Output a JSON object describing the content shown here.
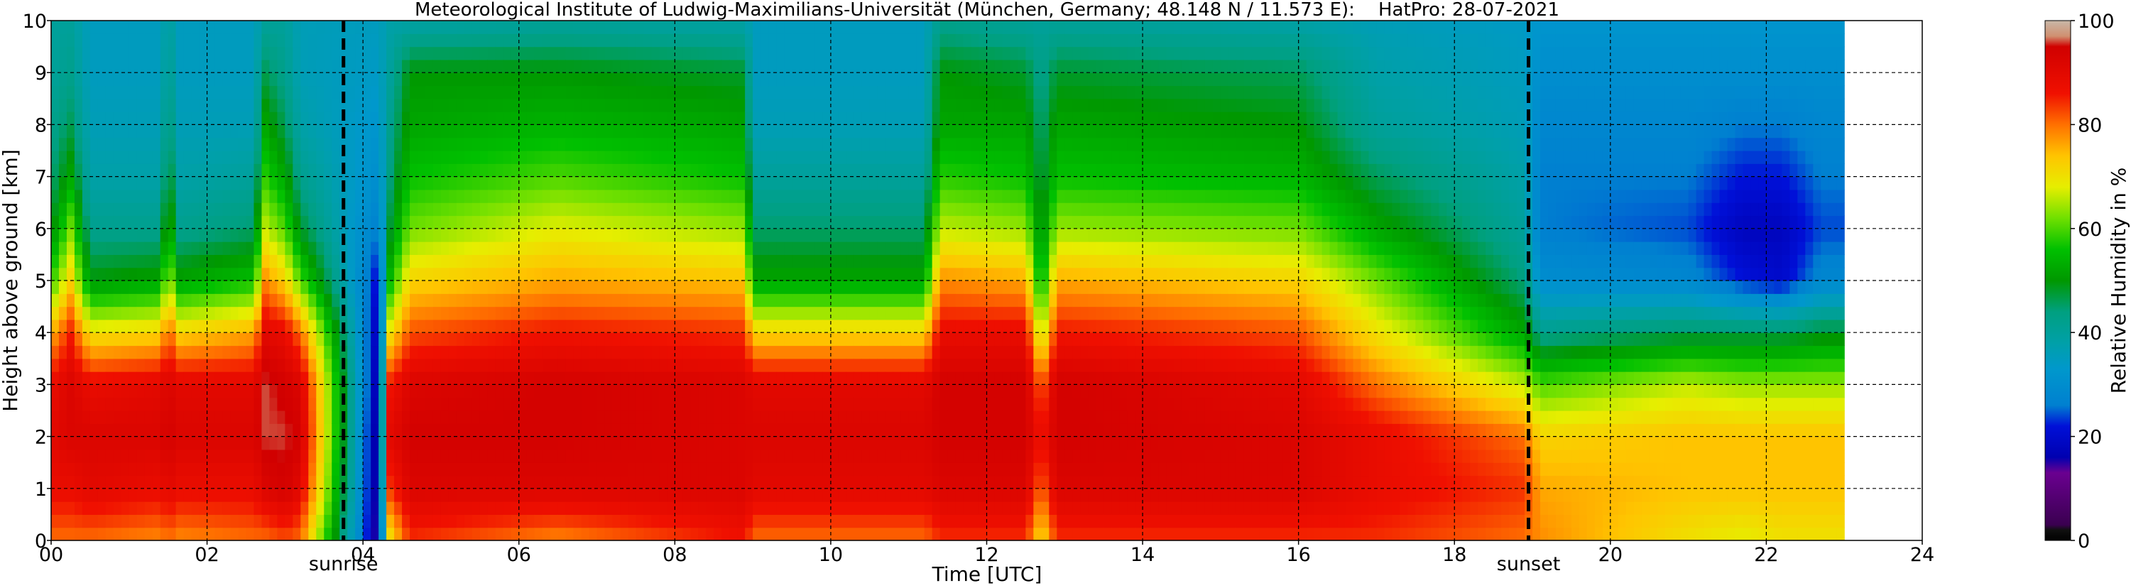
{
  "chart_data": {
    "type": "heatmap",
    "title": "Meteorological Institute of Ludwig-Maximilians-Universität (München, Germany; 48.148 N / 11.573 E):    HatPro: 28-07-2021",
    "xlabel": "Time [UTC]",
    "ylabel": "Height above ground [km]",
    "xlim": [
      0,
      24
    ],
    "ylim": [
      0,
      10
    ],
    "x_ticks": [
      "00",
      "02",
      "04",
      "06",
      "08",
      "10",
      "12",
      "14",
      "16",
      "18",
      "20",
      "22",
      "24"
    ],
    "y_ticks": [
      "0",
      "1",
      "2",
      "3",
      "4",
      "5",
      "6",
      "7",
      "8",
      "9",
      "10"
    ],
    "grid": true,
    "colorbar": {
      "label": "Relative Humidity in %",
      "range": [
        0,
        100
      ],
      "ticks": [
        "0",
        "20",
        "40",
        "60",
        "80",
        "100"
      ]
    },
    "markers": [
      {
        "label": "sunrise",
        "time": 3.75
      },
      {
        "label": "sunset",
        "time": 18.95
      }
    ],
    "data_end_time": 23.0,
    "profiles": [
      {
        "time": 0.0,
        "rh": [
          80,
          88,
          90,
          88,
          75,
          58,
          48,
          44,
          42,
          40,
          40
        ]
      },
      {
        "time": 0.25,
        "rh": [
          80,
          88,
          92,
          92,
          85,
          72,
          62,
          52,
          46,
          42,
          40
        ]
      },
      {
        "time": 0.5,
        "rh": [
          80,
          90,
          92,
          88,
          70,
          50,
          42,
          38,
          36,
          35,
          35
        ]
      },
      {
        "time": 1.4,
        "rh": [
          78,
          88,
          92,
          90,
          72,
          52,
          42,
          38,
          36,
          35,
          35
        ]
      },
      {
        "time": 1.5,
        "rh": [
          80,
          90,
          94,
          92,
          82,
          66,
          56,
          50,
          45,
          42,
          40
        ]
      },
      {
        "time": 1.65,
        "rh": [
          78,
          88,
          92,
          90,
          72,
          52,
          42,
          38,
          36,
          35,
          35
        ]
      },
      {
        "time": 2.6,
        "rh": [
          80,
          88,
          92,
          90,
          76,
          56,
          45,
          40,
          36,
          35,
          35
        ]
      },
      {
        "time": 2.75,
        "rh": [
          80,
          92,
          96,
          96,
          90,
          78,
          66,
          58,
          52,
          46,
          40
        ]
      },
      {
        "time": 3.0,
        "rh": [
          82,
          94,
          96,
          94,
          88,
          72,
          60,
          52,
          46,
          42,
          40
        ]
      },
      {
        "time": 3.2,
        "rh": [
          80,
          90,
          94,
          92,
          80,
          60,
          48,
          42,
          38,
          36,
          36
        ]
      },
      {
        "time": 4.2,
        "rh": [
          12,
          12,
          12,
          14,
          16,
          20,
          26,
          30,
          32,
          34,
          35
        ]
      },
      {
        "time": 4.35,
        "rh": [
          70,
          84,
          90,
          86,
          70,
          55,
          48,
          44,
          42,
          40,
          38
        ]
      },
      {
        "time": 4.6,
        "rh": [
          84,
          92,
          94,
          92,
          82,
          72,
          62,
          56,
          52,
          50,
          38
        ]
      },
      {
        "time": 6.5,
        "rh": [
          78,
          92,
          94,
          94,
          86,
          76,
          68,
          60,
          54,
          50,
          40
        ]
      },
      {
        "time": 8.9,
        "rh": [
          86,
          92,
          92,
          92,
          84,
          74,
          64,
          56,
          52,
          48,
          38
        ]
      },
      {
        "time": 9.0,
        "rh": [
          80,
          90,
          92,
          90,
          72,
          52,
          45,
          40,
          36,
          35,
          35
        ]
      },
      {
        "time": 11.2,
        "rh": [
          80,
          90,
          92,
          90,
          72,
          52,
          45,
          40,
          36,
          35,
          35
        ]
      },
      {
        "time": 11.4,
        "rh": [
          84,
          92,
          94,
          94,
          88,
          78,
          66,
          58,
          52,
          50,
          42
        ]
      },
      {
        "time": 12.5,
        "rh": [
          84,
          92,
          94,
          94,
          88,
          76,
          64,
          56,
          52,
          48,
          40
        ]
      },
      {
        "time": 12.7,
        "rh": [
          70,
          80,
          86,
          80,
          64,
          52,
          48,
          46,
          44,
          42,
          40
        ]
      },
      {
        "time": 12.9,
        "rh": [
          84,
          92,
          94,
          94,
          86,
          76,
          64,
          56,
          52,
          48,
          40
        ]
      },
      {
        "time": 16.0,
        "rh": [
          84,
          92,
          92,
          90,
          82,
          72,
          62,
          54,
          50,
          46,
          38
        ]
      },
      {
        "time": 17.0,
        "rh": [
          84,
          88,
          88,
          80,
          70,
          62,
          52,
          46,
          40,
          38,
          36
        ]
      },
      {
        "time": 18.9,
        "rh": [
          80,
          84,
          80,
          66,
          52,
          44,
          40,
          38,
          36,
          35,
          34
        ]
      },
      {
        "time": 19.1,
        "rh": [
          78,
          76,
          72,
          60,
          42,
          30,
          26,
          26,
          28,
          30,
          32
        ]
      },
      {
        "time": 21.0,
        "rh": [
          70,
          74,
          74,
          66,
          46,
          28,
          24,
          26,
          28,
          30,
          32
        ]
      },
      {
        "time": 21.7,
        "rh": [
          68,
          74,
          74,
          64,
          46,
          22,
          18,
          22,
          26,
          30,
          32
        ]
      },
      {
        "time": 22.2,
        "rh": [
          70,
          74,
          74,
          64,
          46,
          20,
          18,
          22,
          26,
          30,
          32
        ]
      },
      {
        "time": 22.7,
        "rh": [
          70,
          74,
          74,
          64,
          48,
          28,
          24,
          26,
          28,
          30,
          32
        ]
      },
      {
        "time": 23.0,
        "rh": [
          70,
          74,
          74,
          64,
          48,
          28,
          24,
          26,
          28,
          30,
          32
        ]
      }
    ]
  }
}
